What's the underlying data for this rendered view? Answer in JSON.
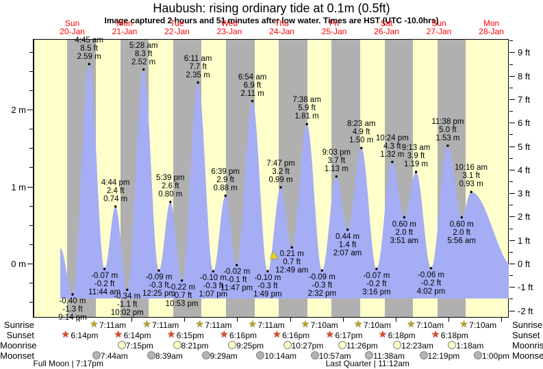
{
  "header": {
    "title": "Haubush: rising  ordinary tide at 0.1m (0.5ft)",
    "subtitle": "Image captured 2 hours and 51 minutes after low water. Times are HST (UTC -10.0hrs)"
  },
  "days": [
    {
      "dow": "Sun",
      "date": "20-Jan"
    },
    {
      "dow": "Mon",
      "date": "21-Jan"
    },
    {
      "dow": "Tue",
      "date": "22-Jan"
    },
    {
      "dow": "Wed",
      "date": "23-Jan"
    },
    {
      "dow": "Thu",
      "date": "24-Jan"
    },
    {
      "dow": "Fri",
      "date": "25-Jan"
    },
    {
      "dow": "Sat",
      "date": "26-Jan"
    },
    {
      "dow": "Sun",
      "date": "27-Jan"
    },
    {
      "dow": "Mon",
      "date": "28-Jan"
    }
  ],
  "chart_data": {
    "type": "area",
    "title": "Haubush: rising  ordinary tide at 0.1m (0.5ft)",
    "y_left_unit": "m",
    "y_right_unit": "ft",
    "y_left_ticks": [
      0,
      1,
      2
    ],
    "y_right_ticks": [
      -2,
      -1,
      0,
      1,
      2,
      3,
      4,
      5,
      6,
      7,
      8,
      9
    ],
    "ylim_m": [
      -0.7,
      2.92
    ],
    "tide_events": [
      {
        "type": "low",
        "day": 0,
        "hour": 21.233,
        "meters": -0.4,
        "time": "9:14 pm",
        "ft": "-1.3 ft",
        "m": "-0.40 m"
      },
      {
        "type": "high",
        "day": 1,
        "hour": 4.75,
        "meters": 2.59,
        "time": "4:45 am",
        "ft": "8.5 ft",
        "m": "2.59 m"
      },
      {
        "type": "low",
        "day": 1,
        "hour": 11.733,
        "meters": -0.07,
        "time": "11:44 am",
        "ft": "-0.2 ft",
        "m": "-0.07 m"
      },
      {
        "type": "high",
        "day": 1,
        "hour": 16.733,
        "meters": 0.74,
        "time": "4:44 pm",
        "ft": "2.4 ft",
        "m": "0.74 m"
      },
      {
        "type": "low",
        "day": 1,
        "hour": 22.033,
        "meters": -0.34,
        "time": "10:02 pm",
        "ft": "-1.1 ft",
        "m": "-0.34 m"
      },
      {
        "type": "high",
        "day": 2,
        "hour": 5.467,
        "meters": 2.52,
        "time": "5:28 am",
        "ft": "8.3 ft",
        "m": "2.52 m"
      },
      {
        "type": "low",
        "day": 2,
        "hour": 12.417,
        "meters": -0.09,
        "time": "12:25 pm",
        "ft": "-0.3 ft",
        "m": "-0.09 m"
      },
      {
        "type": "high",
        "day": 2,
        "hour": 17.65,
        "meters": 0.8,
        "time": "5:39 pm",
        "ft": "2.6 ft",
        "m": "0.80 m"
      },
      {
        "type": "low",
        "day": 2,
        "hour": 22.883,
        "meters": -0.22,
        "time": "10:53 pm",
        "ft": "-0.7 ft",
        "m": "-0.22 m"
      },
      {
        "type": "high",
        "day": 3,
        "hour": 6.183,
        "meters": 2.35,
        "time": "6:11 am",
        "ft": "7.7 ft",
        "m": "2.35 m"
      },
      {
        "type": "low",
        "day": 3,
        "hour": 13.117,
        "meters": -0.1,
        "time": "1:07 pm",
        "ft": "-0.3 ft",
        "m": "-0.10 m"
      },
      {
        "type": "high",
        "day": 3,
        "hour": 18.65,
        "meters": 0.88,
        "time": "6:39 pm",
        "ft": "2.9 ft",
        "m": "0.88 m"
      },
      {
        "type": "low",
        "day": 3,
        "hour": 23.783,
        "meters": -0.02,
        "time": "11:47 pm",
        "ft": "-0.1 ft",
        "m": "-0.02 m"
      },
      {
        "type": "high",
        "day": 4,
        "hour": 6.9,
        "meters": 2.11,
        "time": "6:54 am",
        "ft": "6.9 ft",
        "m": "2.11 m"
      },
      {
        "type": "low",
        "day": 4,
        "hour": 13.817,
        "meters": -0.1,
        "time": "1:49 pm",
        "ft": "-0.3 ft",
        "m": "-0.10 m"
      },
      {
        "type": "high",
        "day": 4,
        "hour": 19.783,
        "meters": 0.99,
        "time": "7:47 pm",
        "ft": "3.2 ft",
        "m": "0.99 m"
      },
      {
        "type": "low",
        "day": 5,
        "hour": 0.817,
        "meters": 0.21,
        "time": "12:49 am",
        "ft": "0.7 ft",
        "m": "0.21 m"
      },
      {
        "type": "high",
        "day": 5,
        "hour": 7.633,
        "meters": 1.81,
        "time": "7:38 am",
        "ft": "5.9 ft",
        "m": "1.81 m"
      },
      {
        "type": "low",
        "day": 5,
        "hour": 14.533,
        "meters": -0.09,
        "time": "2:32 pm",
        "ft": "-0.3 ft",
        "m": "-0.09 m"
      },
      {
        "type": "high",
        "day": 5,
        "hour": 21.05,
        "meters": 1.13,
        "time": "9:03 pm",
        "ft": "3.7 ft",
        "m": "1.13 m"
      },
      {
        "type": "low",
        "day": 6,
        "hour": 2.117,
        "meters": 0.44,
        "time": "2:07 am",
        "ft": "1.4 ft",
        "m": "0.44 m"
      },
      {
        "type": "high",
        "day": 6,
        "hour": 8.383,
        "meters": 1.5,
        "time": "8:23 am",
        "ft": "4.9 ft",
        "m": "1.50 m"
      },
      {
        "type": "low",
        "day": 6,
        "hour": 15.267,
        "meters": -0.07,
        "time": "3:16 pm",
        "ft": "-0.2 ft",
        "m": "-0.07 m"
      },
      {
        "type": "high",
        "day": 6,
        "hour": 22.4,
        "meters": 1.32,
        "time": "10:24 pm",
        "ft": "4.3 ft",
        "m": "1.32 m"
      },
      {
        "type": "low",
        "day": 7,
        "hour": 3.85,
        "meters": 0.6,
        "time": "3:51 am",
        "ft": "2.0 ft",
        "m": "0.60 m"
      },
      {
        "type": "high",
        "day": 7,
        "hour": 9.217,
        "meters": 1.19,
        "time": "9:13 am",
        "ft": "3.9 ft",
        "m": "1.19 m"
      },
      {
        "type": "low",
        "day": 7,
        "hour": 16.033,
        "meters": -0.06,
        "time": "4:02 pm",
        "ft": "-0.2 ft",
        "m": "-0.06 m"
      },
      {
        "type": "high",
        "day": 7,
        "hour": 23.633,
        "meters": 1.53,
        "time": "11:38 pm",
        "ft": "5.0 ft",
        "m": "1.53 m"
      },
      {
        "type": "low",
        "day": 8,
        "hour": 5.933,
        "meters": 0.6,
        "time": "5:56 am",
        "ft": "2.0 ft",
        "m": "0.60 m"
      },
      {
        "type": "high",
        "day": 8,
        "hour": 10.267,
        "meters": 0.93,
        "time": "10:16 am",
        "ft": "3.1 ft",
        "m": "0.93 m"
      }
    ],
    "current_marker": {
      "day": 4,
      "hour": 16.683,
      "meters": 0.1
    }
  },
  "astro": {
    "rows": [
      {
        "id": "sunrise",
        "label": "Sunrise",
        "icon": "sunrise-star",
        "events": [
          {
            "day": 1,
            "hour": 7.183,
            "time": "7:11am"
          },
          {
            "day": 2,
            "hour": 7.183,
            "time": "7:11am"
          },
          {
            "day": 3,
            "hour": 7.183,
            "time": "7:11am"
          },
          {
            "day": 4,
            "hour": 7.183,
            "time": "7:11am"
          },
          {
            "day": 5,
            "hour": 7.167,
            "time": "7:10am"
          },
          {
            "day": 6,
            "hour": 7.167,
            "time": "7:10am"
          },
          {
            "day": 7,
            "hour": 7.167,
            "time": "7:10am"
          },
          {
            "day": 8,
            "hour": 7.167,
            "time": "7:10am"
          }
        ]
      },
      {
        "id": "sunset",
        "label": "Sunset",
        "icon": "sunset-star",
        "events": [
          {
            "day": 0,
            "hour": 18.233,
            "time": "6:14pm"
          },
          {
            "day": 1,
            "hour": 18.233,
            "time": "6:14pm"
          },
          {
            "day": 2,
            "hour": 18.25,
            "time": "6:15pm"
          },
          {
            "day": 3,
            "hour": 18.267,
            "time": "6:16pm"
          },
          {
            "day": 4,
            "hour": 18.267,
            "time": "6:16pm"
          },
          {
            "day": 5,
            "hour": 18.283,
            "time": "6:17pm"
          },
          {
            "day": 6,
            "hour": 18.3,
            "time": "6:18pm"
          },
          {
            "day": 7,
            "hour": 18.3,
            "time": "6:18pm"
          }
        ]
      },
      {
        "id": "moonrise",
        "label": "Moonrise",
        "icon": "moonrise-circle",
        "events": [
          {
            "day": 1,
            "hour": 19.25,
            "time": "7:15pm"
          },
          {
            "day": 2,
            "hour": 20.35,
            "time": "8:21pm"
          },
          {
            "day": 3,
            "hour": 21.417,
            "time": "9:25pm"
          },
          {
            "day": 4,
            "hour": 22.45,
            "time": "10:27pm"
          },
          {
            "day": 5,
            "hour": 23.433,
            "time": "11:26pm"
          },
          {
            "day": 7,
            "hour": 0.383,
            "time": "12:23am"
          },
          {
            "day": 8,
            "hour": 1.3,
            "time": "1:18am"
          }
        ]
      },
      {
        "id": "moonset",
        "label": "Moonset",
        "icon": "moonset-circle",
        "events": [
          {
            "day": 1,
            "hour": 7.733,
            "time": "7:44am"
          },
          {
            "day": 2,
            "hour": 8.65,
            "time": "8:39am"
          },
          {
            "day": 3,
            "hour": 9.483,
            "time": "9:29am"
          },
          {
            "day": 4,
            "hour": 10.233,
            "time": "10:14am"
          },
          {
            "day": 5,
            "hour": 10.95,
            "time": "10:57am"
          },
          {
            "day": 6,
            "hour": 11.633,
            "time": "11:38am"
          },
          {
            "day": 7,
            "hour": 12.317,
            "time": "12:19pm"
          },
          {
            "day": 8,
            "hour": 13.0,
            "time": "1:00pm"
          }
        ]
      }
    ],
    "phases": [
      {
        "label": "Full Moon | 7:17pm",
        "day": 0,
        "hour": 19.283
      },
      {
        "label": "Last Quarter | 11:12am",
        "day": 6,
        "hour": 11.2
      }
    ]
  },
  "colors": {
    "day_band": "#ffffcc",
    "night_band": "#b0b0b0",
    "tide_fill": "#a5adf5",
    "day_label": "#ff0000",
    "sunrise_star": "#b8a422",
    "sunset_star": "#e2491f",
    "moonrise_fill": "#ffffc4",
    "moonset_fill": "#b4b4b4",
    "current_marker": "#ddd028"
  }
}
